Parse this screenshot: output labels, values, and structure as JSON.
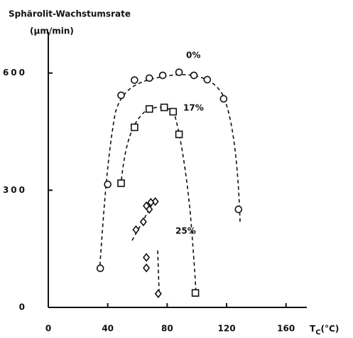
{
  "chart_data": {
    "type": "scatter",
    "title": "Sphärolit-Wachstumsrate",
    "y_label": "(µm/min)",
    "x_label": "T",
    "x_label_sub": "C",
    "x_label_unit": "(°C)",
    "xlim": [
      0,
      174
    ],
    "ylim": [
      0,
      705
    ],
    "xticks": [
      0,
      40,
      80,
      120,
      160
    ],
    "yticks": [
      0,
      300,
      600
    ],
    "series": [
      {
        "name": "0%",
        "marker": "circle",
        "color": "#111",
        "x": [
          35,
          40,
          49,
          58,
          68,
          77,
          88,
          98,
          107,
          118,
          128
        ],
        "values": [
          100,
          315,
          543,
          582,
          587,
          594,
          602,
          594,
          583,
          534,
          251
        ]
      },
      {
        "name": "17%",
        "marker": "square",
        "color": "#111",
        "x": [
          49,
          58,
          68,
          78,
          84,
          88,
          99
        ],
        "values": [
          318,
          461,
          508,
          512,
          501,
          443,
          37
        ]
      },
      {
        "name": "25%",
        "marker": "diamond",
        "color": "#111",
        "x": [
          74,
          66,
          66,
          59,
          64,
          68,
          66,
          72,
          69
        ],
        "values": [
          35,
          101,
          128,
          199,
          219,
          251,
          260,
          271,
          269
        ]
      }
    ]
  }
}
